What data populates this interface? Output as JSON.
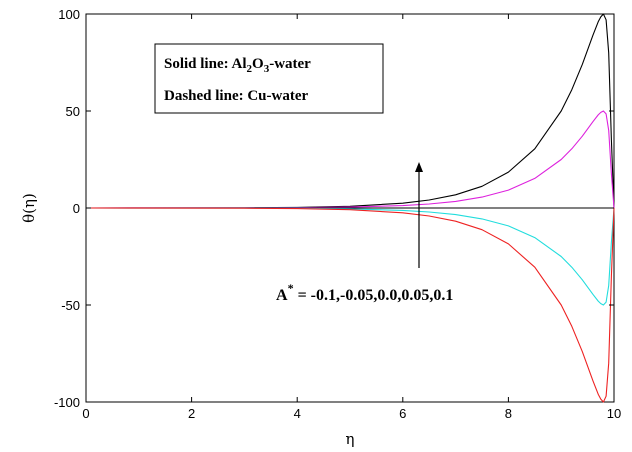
{
  "chart_data": {
    "type": "line",
    "xlabel": "η",
    "ylabel": "θ(η)",
    "xlim": [
      0,
      10
    ],
    "ylim": [
      -100,
      100
    ],
    "xticks": [
      "0",
      "2",
      "4",
      "6",
      "8",
      "10"
    ],
    "yticks": [
      "100",
      "50",
      "0",
      "-50",
      "-100"
    ],
    "grid": false,
    "legend": {
      "placement": "top-left",
      "line1_prefix": "Solid line: Al",
      "line1_sub1": "2",
      "line1_mid": "O",
      "line1_sub2": "3",
      "line1_suffix": "-water",
      "line2": "Dashed line: Cu-water"
    },
    "annotation": {
      "base": "A",
      "sup": "*",
      "text": " = -0.1,-0.05,0.0,0.05,0.1",
      "arrow_direction": "up"
    },
    "x": [
      0,
      3.0,
      4.0,
      5.0,
      6.0,
      6.5,
      7.0,
      7.5,
      8.0,
      8.5,
      9.0,
      9.2,
      9.4,
      9.6,
      9.7,
      9.75,
      9.8,
      9.85,
      9.9,
      9.95,
      10.0
    ],
    "series": [
      {
        "color": "#000000",
        "style": "solid",
        "values": [
          0,
          0.1,
          0.3,
          0.9,
          2.5,
          4.1,
          6.8,
          11.2,
          18.5,
          30.5,
          50.0,
          61.0,
          74.0,
          89.0,
          96.0,
          98.5,
          100.0,
          97.0,
          80.0,
          35.0,
          0
        ]
      },
      {
        "color": "#dd22dd",
        "style": "solid",
        "values": [
          0,
          0.05,
          0.15,
          0.45,
          1.25,
          2.05,
          3.4,
          5.6,
          9.25,
          15.25,
          25.0,
          30.5,
          37.0,
          44.5,
          48.0,
          49.3,
          50.0,
          48.5,
          40.0,
          17.5,
          0
        ]
      },
      {
        "color": "#000000",
        "style": "solid",
        "values": [
          0,
          0,
          0,
          0,
          0,
          0,
          0,
          0,
          0,
          0,
          0,
          0,
          0,
          0,
          0,
          0,
          0,
          0,
          0,
          0,
          0
        ]
      },
      {
        "color": "#22dddd",
        "style": "solid",
        "values": [
          0,
          -0.05,
          -0.15,
          -0.45,
          -1.25,
          -2.05,
          -3.4,
          -5.6,
          -9.25,
          -15.25,
          -25.0,
          -30.5,
          -37.0,
          -44.5,
          -48.0,
          -49.3,
          -50.0,
          -48.5,
          -40.0,
          -17.5,
          0
        ]
      },
      {
        "color": "#ee2222",
        "style": "solid",
        "values": [
          0,
          -0.1,
          -0.3,
          -0.9,
          -2.5,
          -4.1,
          -6.8,
          -11.2,
          -18.5,
          -30.5,
          -50.0,
          -61.0,
          -74.0,
          -89.0,
          -96.0,
          -98.5,
          -100.0,
          -97.0,
          -80.0,
          -35.0,
          0
        ]
      }
    ]
  }
}
